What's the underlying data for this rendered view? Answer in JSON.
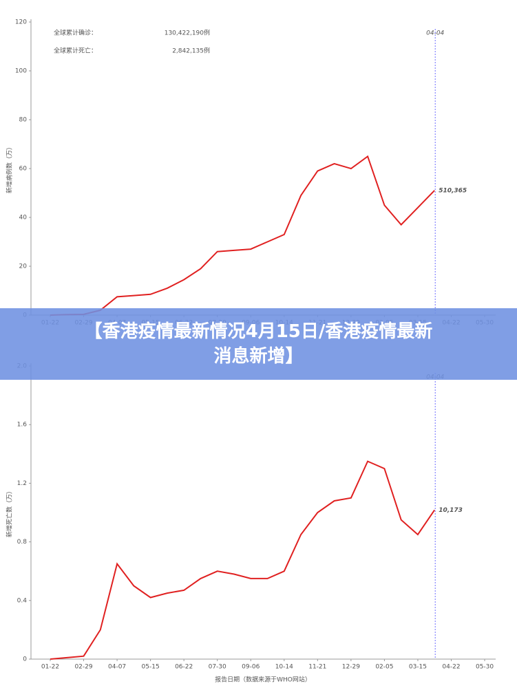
{
  "chart_data": [
    {
      "type": "line",
      "ylabel": "新增病例数（万）",
      "stats": [
        {
          "label": "全球累计确诊：",
          "value": "130,422,190例"
        },
        {
          "label": "全球累计死亡：",
          "value": "2,842,135例"
        }
      ],
      "marker_label": "04-04",
      "categories": [
        "01-22",
        null,
        "02-29",
        null,
        "04-07",
        null,
        "05-15",
        null,
        "06-22",
        null,
        "07-30",
        null,
        "09-06",
        null,
        "10-14",
        null,
        "11-21",
        null,
        "12-29",
        null,
        "02-05",
        null,
        "03-15",
        null,
        "04-22",
        null,
        "05-30"
      ],
      "series": [
        {
          "color": "#e02020",
          "values": [
            0,
            0.2,
            0.3,
            2,
            7.5,
            8,
            8.5,
            11,
            14.5,
            19,
            26,
            26.5,
            27,
            30,
            33,
            49,
            59,
            62,
            60,
            65,
            45,
            37,
            44,
            51.0365,
            null,
            null,
            null
          ],
          "value_labels": [
            null,
            null,
            null,
            null,
            null,
            null,
            null,
            null,
            null,
            null,
            null,
            null,
            null,
            null,
            null,
            null,
            null,
            null,
            null,
            null,
            null,
            null,
            null,
            "510,365",
            null,
            null,
            null
          ]
        }
      ],
      "ylim": [
        0,
        120
      ],
      "yticks": [
        0,
        20,
        40,
        60,
        80,
        100,
        120
      ]
    },
    {
      "type": "line",
      "ylabel": "新增死亡数（万）",
      "xlabel": "报告日期（数据来源于WHO网站）",
      "marker_label": "04-04",
      "categories": [
        "01-22",
        null,
        "02-29",
        null,
        "04-07",
        null,
        "05-15",
        null,
        "06-22",
        null,
        "07-30",
        null,
        "09-06",
        null,
        "10-14",
        null,
        "11-21",
        null,
        "12-29",
        null,
        "02-05",
        null,
        "03-15",
        null,
        "04-22",
        null,
        "05-30"
      ],
      "series": [
        {
          "color": "#e02020",
          "values": [
            0,
            0.01,
            0.02,
            0.2,
            0.65,
            0.5,
            0.42,
            0.45,
            0.47,
            0.55,
            0.6,
            0.58,
            0.55,
            0.55,
            0.6,
            0.85,
            1.0,
            1.08,
            1.1,
            1.35,
            1.3,
            0.95,
            0.85,
            1.0173,
            null,
            null,
            null
          ],
          "value_labels": [
            null,
            null,
            null,
            null,
            null,
            null,
            null,
            null,
            null,
            null,
            null,
            null,
            null,
            null,
            null,
            null,
            null,
            null,
            null,
            null,
            null,
            null,
            null,
            "10,173",
            null,
            null,
            null
          ]
        }
      ],
      "ylim": [
        0,
        2
      ],
      "yticks": [
        0,
        0.4,
        0.8,
        1.2,
        1.6,
        {
          "value": 2,
          "label": "2.0"
        }
      ]
    }
  ],
  "banner": {
    "lines": [
      "【香港疫情最新情况4月15日/香港疫情最新",
      "消息新增】"
    ]
  }
}
